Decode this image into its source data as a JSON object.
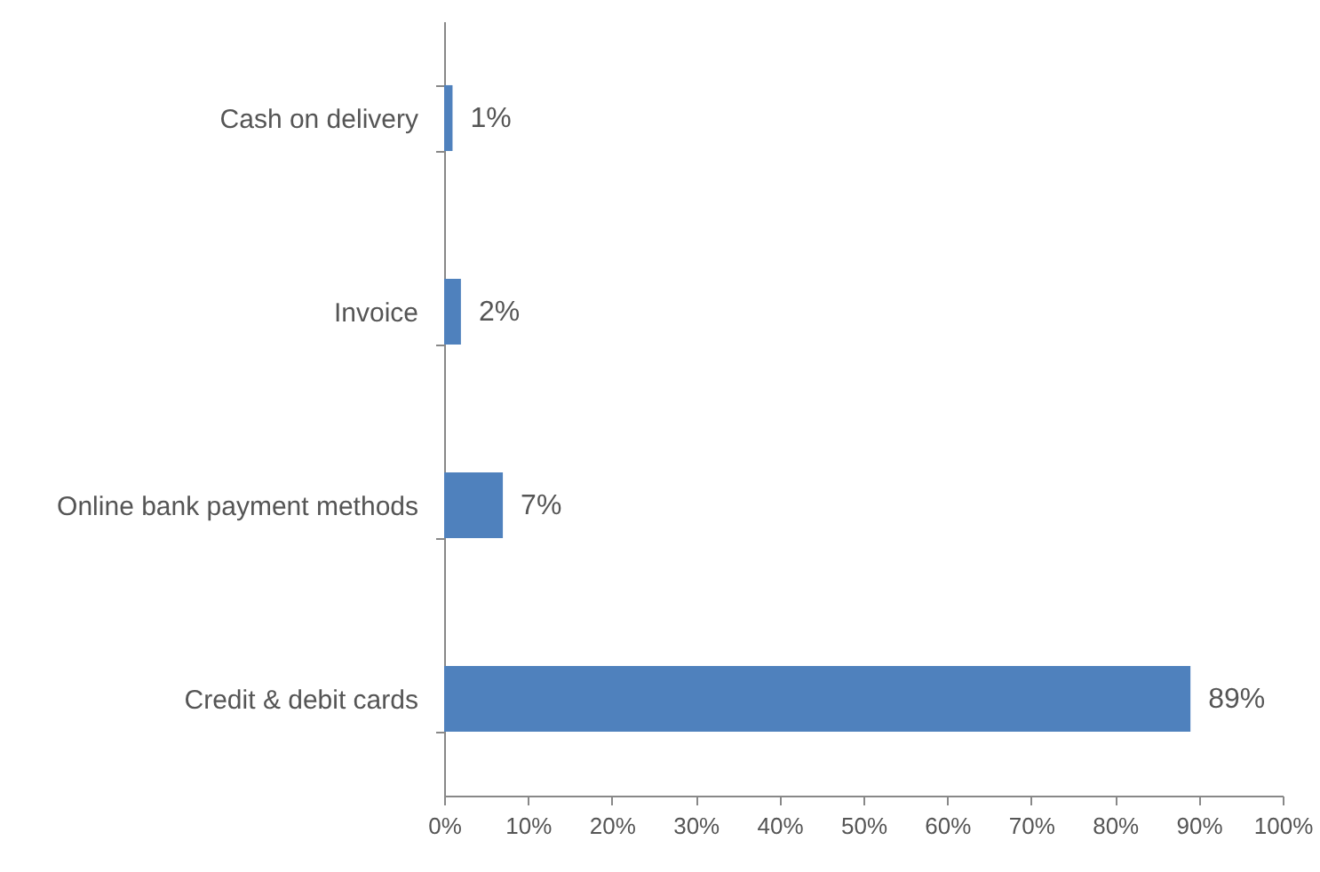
{
  "chart_data": {
    "type": "bar",
    "orientation": "horizontal",
    "categories": [
      "Cash on delivery",
      "Invoice",
      "Online bank payment methods",
      "Credit & debit cards"
    ],
    "values": [
      1,
      2,
      7,
      89
    ],
    "value_labels": [
      "1%",
      "2%",
      "7%",
      "89%"
    ],
    "color": "#4f81bd",
    "xlim": [
      0,
      100
    ],
    "xticks": [
      {
        "value": 0,
        "label": "0%"
      },
      {
        "value": 10,
        "label": "10%"
      },
      {
        "value": 20,
        "label": "20%"
      },
      {
        "value": 30,
        "label": "30%"
      },
      {
        "value": 40,
        "label": "40%"
      },
      {
        "value": 50,
        "label": "50%"
      },
      {
        "value": 60,
        "label": "60%"
      },
      {
        "value": 70,
        "label": "70%"
      },
      {
        "value": 80,
        "label": "80%"
      },
      {
        "value": 90,
        "label": "90%"
      },
      {
        "value": 100,
        "label": "100%"
      }
    ],
    "grid": false
  }
}
